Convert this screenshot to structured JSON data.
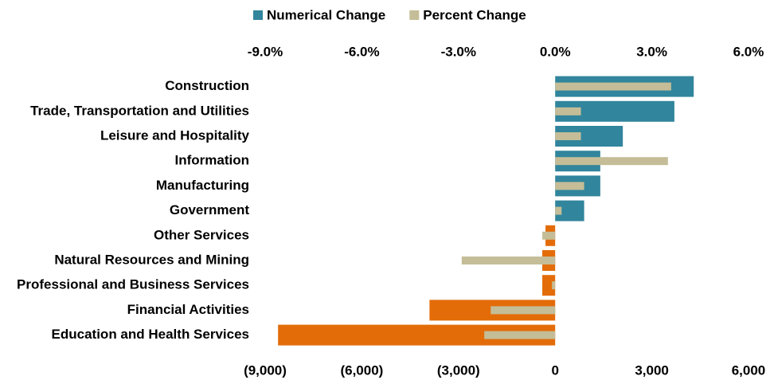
{
  "chart_data": {
    "type": "bar",
    "orientation": "horizontal",
    "categories": [
      "Construction",
      "Trade, Transportation and Utilities",
      "Leisure and Hospitality",
      "Information",
      "Manufacturing",
      "Government",
      "Other Services",
      "Natural Resources and Mining",
      "Professional and Business Services",
      "Financial Activities",
      "Education and Health Services"
    ],
    "series": [
      {
        "name": "Numerical Change",
        "color": "#31859c",
        "negative_color": "#e36c09",
        "axis": "x",
        "values": [
          4300,
          3700,
          2100,
          1400,
          1400,
          900,
          -300,
          -400,
          -400,
          -3900,
          -8600
        ]
      },
      {
        "name": "Percent Change",
        "color": "#c4bd97",
        "axis": "x2",
        "values": [
          3.6,
          0.8,
          0.8,
          3.5,
          0.9,
          0.2,
          -0.4,
          -2.9,
          -0.1,
          -2.0,
          -2.2
        ]
      }
    ],
    "xlim": [
      -9000,
      6000
    ],
    "xticks": [
      {
        "value": -9000,
        "label": "(9,000)"
      },
      {
        "value": -6000,
        "label": "(6,000)"
      },
      {
        "value": -3000,
        "label": "(3,000)"
      },
      0,
      {
        "value": 3000,
        "label": "3,000"
      },
      {
        "value": 6000,
        "label": "6,000"
      }
    ],
    "negative_tick_color": "#ff0000",
    "x2lim": [
      -9,
      6
    ],
    "x2ticks": [
      {
        "value": -9,
        "label": "-9.0%"
      },
      {
        "value": -6,
        "label": "-6.0%"
      },
      {
        "value": -3,
        "label": "-3.0%"
      },
      {
        "value": 0,
        "label": "0.0%"
      },
      {
        "value": 3,
        "label": "3.0%"
      },
      {
        "value": 6,
        "label": "6.0%"
      }
    ],
    "legend": "top",
    "grid": false
  }
}
